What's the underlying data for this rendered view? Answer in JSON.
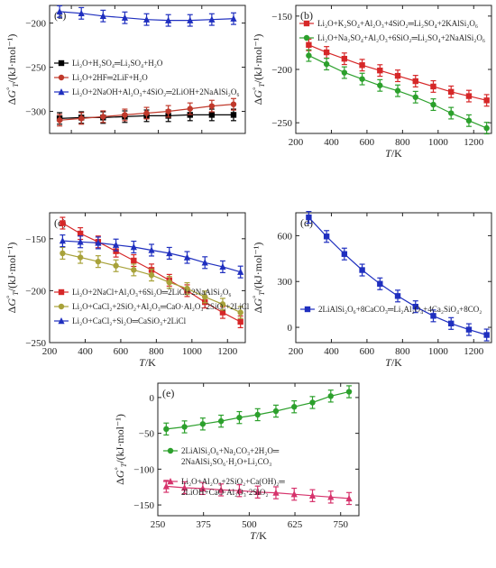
{
  "chart_data": [
    {
      "id": "panel-a",
      "type": "line",
      "panel_label": "(a)",
      "xlabel": "T/K",
      "ylabel": "ΔG°T/(kJ·mol⁻¹)",
      "xlim": [
        250,
        700
      ],
      "ylim": [
        -325,
        -180
      ],
      "xticks": [
        300,
        400,
        500,
        600,
        700
      ],
      "yticks": [
        -300,
        -250,
        -200
      ],
      "show_x_ticklabels": false,
      "legend_position": "middle-left",
      "x": [
        273,
        323,
        373,
        423,
        473,
        523,
        573,
        623,
        673
      ],
      "series": [
        {
          "name": "Li₂O+H₂SO₄═Li₂SO₄+H₂O",
          "color": "#000000",
          "marker": "square",
          "values": [
            -308,
            -307,
            -307,
            -306,
            -305,
            -305,
            -304,
            -304,
            -304
          ]
        },
        {
          "name": "Li₂O+2HF═2LiF+H₂O",
          "color": "#c0392b",
          "marker": "circle",
          "values": [
            -310,
            -308,
            -306,
            -304,
            -302,
            -300,
            -297,
            -294,
            -292
          ]
        },
        {
          "name": "Li₂O+2NaOH+Al₂O₃+4SiO₂═2LiOH+2NaAlSi₂O₆",
          "color": "#1f2fbf",
          "marker": "triangle",
          "values": [
            -187,
            -189,
            -192,
            -194,
            -196,
            -197,
            -197,
            -196,
            -195
          ]
        }
      ]
    },
    {
      "id": "panel-b",
      "type": "line",
      "panel_label": "(b)",
      "xlabel": "T/K",
      "ylabel": "ΔG°T/(kJ·mol⁻¹)",
      "xlim": [
        200,
        1300
      ],
      "ylim": [
        -260,
        -140
      ],
      "xticks": [
        200,
        400,
        600,
        800,
        1000,
        1200
      ],
      "yticks": [
        -250,
        -200,
        -150
      ],
      "legend_position": "top",
      "x": [
        273,
        373,
        473,
        573,
        673,
        773,
        873,
        973,
        1073,
        1173,
        1273
      ],
      "series": [
        {
          "name": "Li₂O+K₂SO₄+Al₂O₃+4SiO₂═Li₂SO₄+2KAlSi₂O₆",
          "color": "#d62728",
          "marker": "square",
          "values": [
            -177,
            -184,
            -190,
            -196,
            -201,
            -206,
            -211,
            -216,
            -221,
            -225,
            -229
          ]
        },
        {
          "name": "Li₂O+Na₂SO₄+Al₂O₃+6SiO₂═Li₂SO₄+2NaAlSi₂O₆",
          "color": "#2ca02c",
          "marker": "circle",
          "values": [
            -187,
            -195,
            -203,
            -209,
            -215,
            -220,
            -226,
            -233,
            -241,
            -248,
            -255
          ]
        }
      ]
    },
    {
      "id": "panel-c",
      "type": "line",
      "panel_label": "(c)",
      "xlabel": "T/K",
      "ylabel": "ΔG°T/(kJ·mol⁻¹)",
      "xlim": [
        200,
        1300
      ],
      "ylim": [
        -250,
        -125
      ],
      "xticks": [
        200,
        400,
        600,
        800,
        1000,
        1200
      ],
      "yticks": [
        -250,
        -200,
        -150
      ],
      "legend_position": "bottom-left",
      "x": [
        273,
        373,
        473,
        573,
        673,
        773,
        873,
        973,
        1073,
        1173,
        1273
      ],
      "series": [
        {
          "name": "Li₂O+2NaCl+Al₂O₃+6Si₂O═2LiCl+2NaAlSi₂O₆",
          "color": "#d62728",
          "marker": "square",
          "values": [
            -135,
            -145,
            -153,
            -162,
            -171,
            -180,
            -190,
            -200,
            -211,
            -221,
            -230
          ]
        },
        {
          "name": "Li₂O+CaCl₂+2SiO₂+Al₂O₃═CaO·Al₂O₃·2SiO₂+2LiCl",
          "color": "#a8a23a",
          "marker": "circle",
          "values": [
            -164,
            -168,
            -172,
            -176,
            -180,
            -185,
            -192,
            -198,
            -206,
            -213,
            -221
          ]
        },
        {
          "name": "Li₂O+CaCl₂+Si₂O═CaSiO₃+2LiCl",
          "color": "#1f2fbf",
          "marker": "triangle",
          "values": [
            -152,
            -153,
            -154,
            -156,
            -158,
            -161,
            -164,
            -168,
            -173,
            -177,
            -182
          ]
        }
      ]
    },
    {
      "id": "panel-d",
      "type": "line",
      "panel_label": "(d)",
      "xlabel": "T/K",
      "ylabel": "ΔG°T/(kJ·mol⁻¹)",
      "xlim": [
        200,
        1300
      ],
      "ylim": [
        -100,
        750
      ],
      "xticks": [
        200,
        400,
        600,
        800,
        1000,
        1200
      ],
      "yticks": [
        0,
        300,
        600
      ],
      "legend_position": "bottom-center",
      "x": [
        273,
        373,
        473,
        573,
        673,
        773,
        873,
        973,
        1073,
        1173,
        1273
      ],
      "series": [
        {
          "name": "2LiAlSi₂O₆+8CaCO₃═Li₂Al₂O₄+4Ca₂SiO₄+8CO₂",
          "color": "#1f2fbf",
          "marker": "square",
          "values": [
            720,
            595,
            480,
            375,
            285,
            205,
            135,
            75,
            25,
            -15,
            -50
          ]
        }
      ]
    },
    {
      "id": "panel-e",
      "type": "line",
      "panel_label": "(e)",
      "xlabel": "T/K",
      "ylabel": "ΔG°T/(kJ·mol⁻¹)",
      "xlim": [
        250,
        800
      ],
      "ylim": [
        -165,
        20
      ],
      "xticks": [
        250,
        375,
        500,
        625,
        750
      ],
      "yticks": [
        -150,
        -100,
        -50,
        0
      ],
      "legend_position": "center",
      "x": [
        273,
        323,
        373,
        423,
        473,
        523,
        573,
        623,
        673,
        723,
        773
      ],
      "series": [
        {
          "name": [
            "2LiAlSi₂O₆+Na₂CO₃+2H₂O═",
            "2NaAlSi₂SO₆·H₂O+Li₂CO₃"
          ],
          "color": "#2ca02c",
          "marker": "circle",
          "values": [
            -44,
            -41,
            -37,
            -33,
            -28,
            -24,
            -19,
            -13,
            -7,
            2,
            8
          ]
        },
        {
          "name": [
            "Li₂O+Al₂O₃+2SiO₂+Ca(OH)₂═",
            "2LiOH+CaO·Al₂O₃·2SiO₂"
          ],
          "color": "#d6336c",
          "marker": "triangle",
          "values": [
            -124,
            -126,
            -127,
            -129,
            -130,
            -132,
            -133,
            -135,
            -137,
            -139,
            -141
          ]
        }
      ]
    }
  ]
}
